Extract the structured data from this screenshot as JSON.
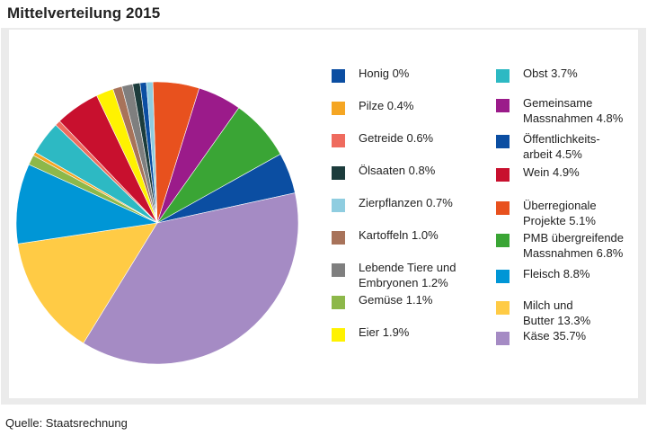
{
  "title": "Mittelverteilung 2015",
  "source": "Quelle: Staatsrechnung",
  "chart_data": {
    "type": "pie",
    "title": "Mittelverteilung 2015",
    "unit": "%",
    "slices": [
      {
        "label": "Honig",
        "display": "Honig 0%",
        "value": 0,
        "color": "#0b4ea2"
      },
      {
        "label": "Pilze",
        "display": "Pilze 0.4%",
        "value": 0.4,
        "color": "#f5a623"
      },
      {
        "label": "Getreide",
        "display": "Getreide 0.6%",
        "value": 0.6,
        "color": "#ef6b5e"
      },
      {
        "label": "Ölsaaten",
        "display": "Ölsaaten 0.8%",
        "value": 0.8,
        "color": "#1c3c3c"
      },
      {
        "label": "Zierpflanzen",
        "display": "Zierpflanzen 0.7%",
        "value": 0.7,
        "color": "#8fcde0"
      },
      {
        "label": "Kartoffeln",
        "display": "Kartoffeln 1.0%",
        "value": 1.0,
        "color": "#a8735a"
      },
      {
        "label": "Lebende Tiere und Embryonen",
        "display": "Lebende Tiere und\nEmbryonen 1.2%",
        "value": 1.2,
        "color": "#7f7f7f"
      },
      {
        "label": "Gemüse",
        "display": "Gemüse 1.1%",
        "value": 1.1,
        "color": "#8db84a"
      },
      {
        "label": "Eier",
        "display": "Eier 1.9%",
        "value": 1.9,
        "color": "#fff200"
      },
      {
        "label": "Obst",
        "display": "Obst 3.7%",
        "value": 3.7,
        "color": "#2db9c3"
      },
      {
        "label": "Gemeinsame Massnahmen",
        "display": "Gemeinsame\nMassnahmen 4.8%",
        "value": 4.8,
        "color": "#9b1b8a"
      },
      {
        "label": "Öffentlichkeitsarbeit",
        "display": "Öffentlichkeits-\narbeit 4.5%",
        "value": 4.5,
        "color": "#0b4ea2"
      },
      {
        "label": "Wein",
        "display": "Wein 4.9%",
        "value": 4.9,
        "color": "#c8102e"
      },
      {
        "label": "Überregionale Projekte",
        "display": "Überregionale\nProjekte 5.1%",
        "value": 5.1,
        "color": "#e8511e"
      },
      {
        "label": "PMB übergreifende Massnahmen",
        "display": "PMB übergreifende\nMassnahmen 6.8%",
        "value": 6.8,
        "color": "#3aa535"
      },
      {
        "label": "Fleisch",
        "display": "Fleisch 8.8%",
        "value": 8.8,
        "color": "#0096d6"
      },
      {
        "label": "Milch und Butter",
        "display": "Milch und\nButter 13.3%",
        "value": 13.3,
        "color": "#ffcb45"
      },
      {
        "label": "Käse",
        "display": "Käse 35.7%",
        "value": 35.7,
        "color": "#a58bc4"
      }
    ],
    "pie_order": [
      "Überregionale Projekte",
      "Gemeinsame Massnahmen",
      "PMB übergreifende Massnahmen",
      "Öffentlichkeitsarbeit",
      "Käse",
      "Milch und Butter",
      "Fleisch",
      "Gemüse",
      "Pilze",
      "Obst",
      "Getreide",
      "Wein",
      "Eier",
      "Kartoffeln",
      "Lebende Tiere und Embryonen",
      "Ölsaaten",
      "Honig",
      "Zierpflanzen"
    ]
  }
}
